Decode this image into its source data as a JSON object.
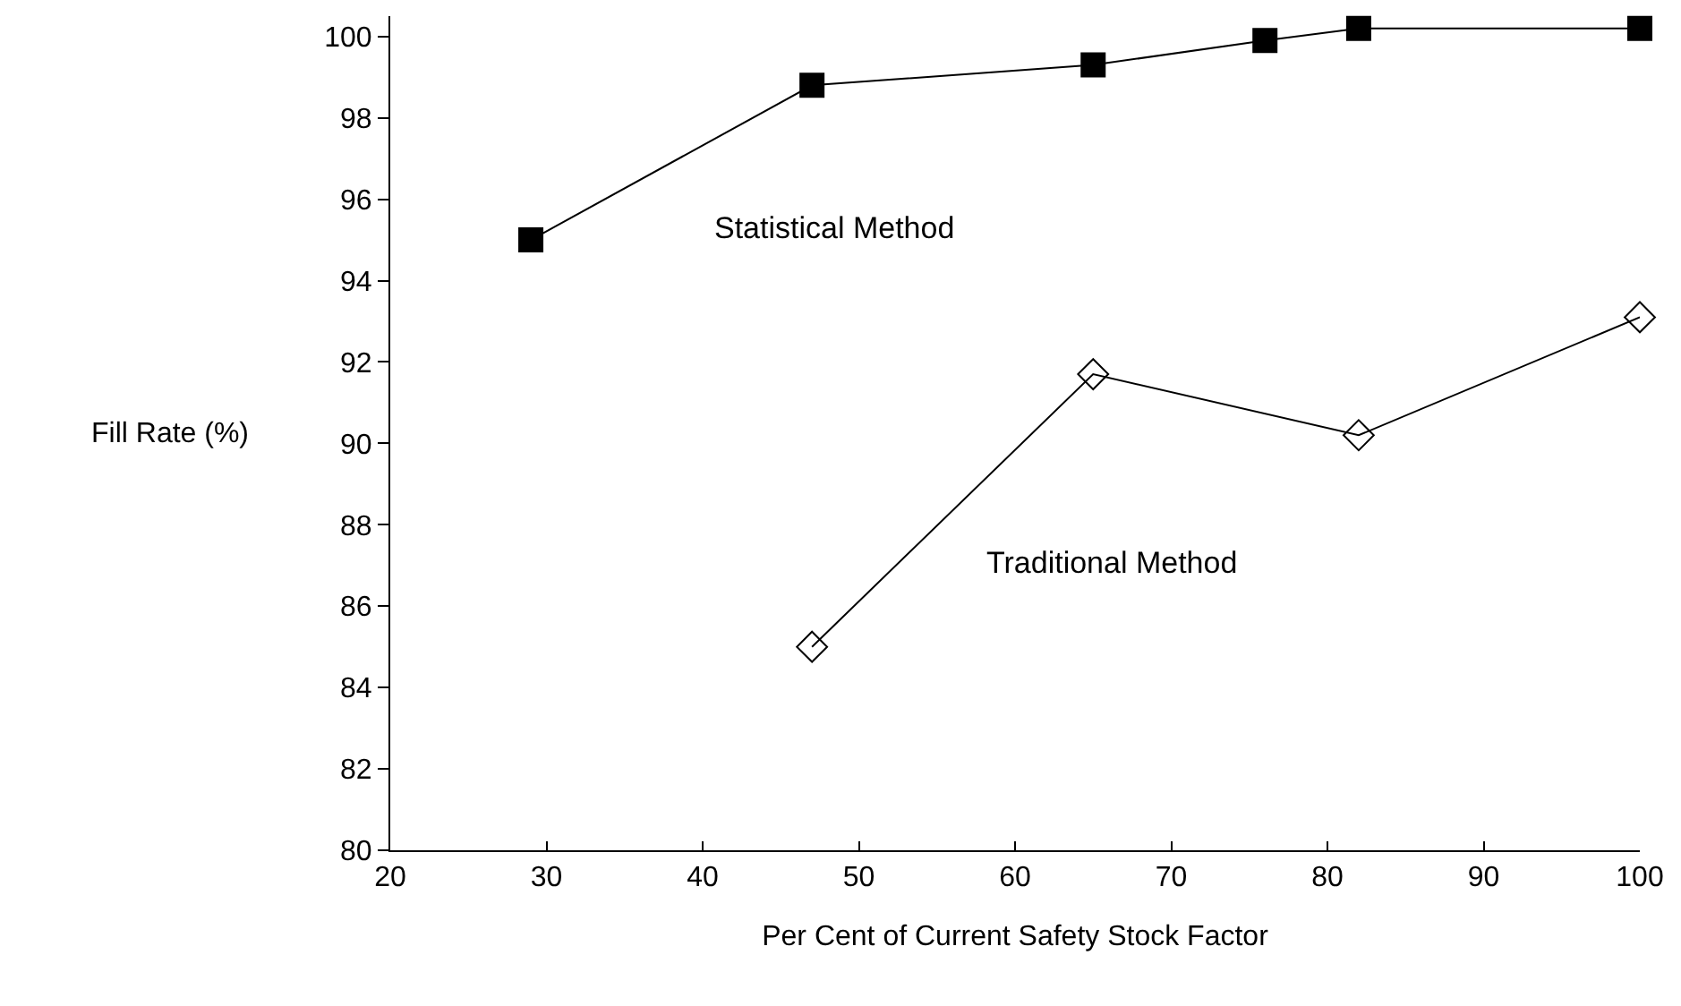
{
  "chart_data": {
    "type": "line",
    "xlabel": "Per Cent of Current Safety Stock Factor",
    "ylabel": "Fill Rate (%)",
    "xlim": [
      20,
      100
    ],
    "xticks": [
      20,
      30,
      40,
      50,
      60,
      70,
      80,
      90,
      100
    ],
    "ylim": [
      80,
      100.5
    ],
    "yticks": [
      80,
      82,
      84,
      86,
      88,
      90,
      92,
      94,
      96,
      98,
      100
    ],
    "line_style": "solid",
    "series": [
      {
        "name": "Statistical Method",
        "color": "#000000",
        "marker": "square",
        "x": [
          29,
          47,
          65,
          76,
          82,
          100
        ],
        "values": [
          95.0,
          98.8,
          99.3,
          99.9,
          100.2,
          100.2
        ]
      },
      {
        "name": "Traditional Method",
        "color": "#000000",
        "marker": "diamond-open",
        "x": [
          47,
          65,
          82,
          100
        ],
        "values": [
          85.0,
          91.7,
          90.2,
          93.1
        ]
      }
    ]
  }
}
